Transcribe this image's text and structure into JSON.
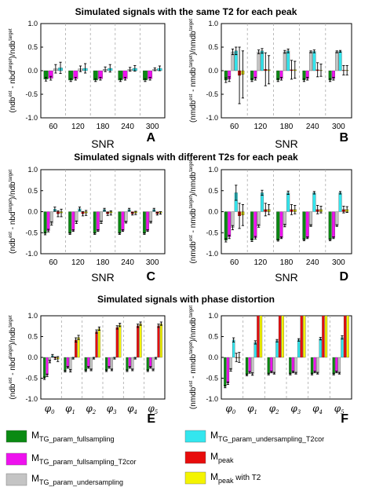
{
  "colors": {
    "fullsampling": "#0a8a12",
    "fullsampling_t2cor": "#ee11ee",
    "undersampling": "#c4c4c4",
    "undersampling_t2cor": "#33e6ee",
    "peak": "#e80c0c",
    "peak_t2": "#f4f400"
  },
  "row_titles": [
    "Simulated signals with the same T2 for each peak",
    "Simulated signals with different T2s for each peak",
    "Simulated signals with phase distortion"
  ],
  "legend": {
    "fullsampling": {
      "main": "M",
      "sub": "TG_param_fullsampling",
      "suffix": ""
    },
    "fullsampling_t2cor": {
      "main": "M",
      "sub": "TG_param_fullsampling_T2cor",
      "suffix": ""
    },
    "undersampling": {
      "main": "M",
      "sub": "TG_param_undersampling",
      "suffix": ""
    },
    "undersampling_t2cor": {
      "main": "M",
      "sub": "TG_param_undersampling_T2cor",
      "suffix": ""
    },
    "peak": {
      "main": "M",
      "sub": "peak",
      "suffix": ""
    },
    "peak_t2": {
      "main": "M",
      "sub": "peak",
      "suffix": " with T2"
    }
  },
  "chart_data": [
    {
      "panel": "A",
      "type": "bar",
      "xlabel": "SNR",
      "ylim": [
        -1.0,
        1.0
      ],
      "ylabel": {
        "base": "(ndb",
        "sup1": "est",
        "mid": " - nbd",
        "sup2": "target",
        "end": ")/ndb",
        "sup3": "target"
      },
      "categories": [
        "60",
        "120",
        "180",
        "240",
        "300"
      ],
      "series": [
        {
          "key": "fullsampling",
          "values": [
            -0.18,
            -0.2,
            -0.2,
            -0.2,
            -0.2
          ],
          "errors": [
            0.04,
            0.03,
            0.03,
            0.03,
            0.03
          ]
        },
        {
          "key": "fullsampling_t2cor",
          "values": [
            -0.16,
            -0.17,
            -0.17,
            -0.17,
            -0.17
          ],
          "errors": [
            0.04,
            0.03,
            0.03,
            0.03,
            0.03
          ]
        },
        {
          "key": "undersampling",
          "values": [
            0.04,
            0.04,
            0.03,
            0.03,
            0.03
          ],
          "errors": [
            0.09,
            0.06,
            0.05,
            0.04,
            0.03
          ]
        },
        {
          "key": "undersampling_t2cor",
          "values": [
            0.06,
            0.05,
            0.05,
            0.05,
            0.05
          ],
          "errors": [
            0.12,
            0.1,
            0.08,
            0.06,
            0.05
          ]
        }
      ]
    },
    {
      "panel": "B",
      "type": "bar",
      "xlabel": "SNR",
      "ylim": [
        -1.0,
        1.0
      ],
      "ylabel": {
        "base": "(nmdb",
        "sup1": "est",
        "mid": " - nmdb",
        "sup2": "target",
        "end": ")/nmdb",
        "sup3": "target"
      },
      "categories": [
        "60",
        "120",
        "180",
        "240",
        "300"
      ],
      "series": [
        {
          "key": "fullsampling",
          "values": [
            -0.2,
            -0.2,
            -0.2,
            -0.2,
            -0.2
          ],
          "errors": [
            0.05,
            0.03,
            0.03,
            0.03,
            0.03
          ]
        },
        {
          "key": "fullsampling_t2cor",
          "values": [
            -0.18,
            -0.17,
            -0.17,
            -0.17,
            -0.17
          ],
          "errors": [
            0.05,
            0.03,
            0.03,
            0.03,
            0.03
          ]
        },
        {
          "key": "undersampling",
          "values": [
            0.4,
            0.4,
            0.4,
            0.4,
            0.4
          ],
          "errors": [
            0.06,
            0.04,
            0.03,
            0.02,
            0.02
          ]
        },
        {
          "key": "undersampling_t2cor",
          "values": [
            0.42,
            0.42,
            0.42,
            0.41,
            0.41
          ],
          "errors": [
            0.08,
            0.05,
            0.04,
            0.03,
            0.02
          ]
        },
        {
          "key": "peak",
          "values": [
            -0.1,
            0.03,
            0.02,
            0.02,
            0.01
          ],
          "errors": [
            0.6,
            0.35,
            0.2,
            0.15,
            0.1
          ]
        },
        {
          "key": "peak_t2",
          "values": [
            -0.08,
            0.02,
            0.02,
            0.01,
            0.01
          ],
          "errors": [
            0.5,
            0.3,
            0.18,
            0.13,
            0.1
          ]
        }
      ]
    },
    {
      "panel": "C",
      "type": "bar",
      "xlabel": "SNR",
      "ylim": [
        -1.0,
        1.0
      ],
      "ylabel": {
        "base": "(ndb",
        "sup1": "est",
        "mid": " - nbd",
        "sup2": "target",
        "end": ")/ndb",
        "sup3": "target"
      },
      "categories": [
        "60",
        "120",
        "180",
        "240",
        "300"
      ],
      "series": [
        {
          "key": "fullsampling",
          "values": [
            -0.52,
            -0.52,
            -0.52,
            -0.52,
            -0.52
          ],
          "errors": [
            0.03,
            0.02,
            0.02,
            0.02,
            0.02
          ]
        },
        {
          "key": "fullsampling_t2cor",
          "values": [
            -0.45,
            -0.45,
            -0.45,
            -0.45,
            -0.45
          ],
          "errors": [
            0.03,
            0.02,
            0.02,
            0.02,
            0.02
          ]
        },
        {
          "key": "undersampling",
          "values": [
            -0.28,
            -0.25,
            -0.25,
            -0.25,
            -0.25
          ],
          "errors": [
            0.04,
            0.03,
            0.03,
            0.02,
            0.02
          ]
        },
        {
          "key": "undersampling_t2cor",
          "values": [
            0.06,
            0.07,
            0.05,
            0.05,
            0.05
          ],
          "errors": [
            0.05,
            0.04,
            0.03,
            0.03,
            0.03
          ]
        },
        {
          "key": "peak",
          "values": [
            -0.05,
            -0.05,
            -0.05,
            -0.05,
            -0.05
          ],
          "errors": [
            0.07,
            0.05,
            0.04,
            0.03,
            0.03
          ]
        },
        {
          "key": "peak_t2",
          "values": [
            -0.03,
            -0.03,
            -0.03,
            -0.03,
            -0.03
          ],
          "errors": [
            0.09,
            0.06,
            0.05,
            0.04,
            0.03
          ]
        }
      ]
    },
    {
      "panel": "D",
      "type": "bar",
      "xlabel": "SNR",
      "ylim": [
        -1.0,
        1.0
      ],
      "ylabel": {
        "base": "(nmdb",
        "sup1": "est",
        "mid": " - nmdb",
        "sup2": "target",
        "end": ")/nmdb",
        "sup3": "target"
      },
      "categories": [
        "60",
        "120",
        "180",
        "240",
        "300"
      ],
      "series": [
        {
          "key": "fullsampling",
          "values": [
            -0.68,
            -0.68,
            -0.68,
            -0.67,
            -0.67
          ],
          "errors": [
            0.04,
            0.03,
            0.02,
            0.02,
            0.02
          ]
        },
        {
          "key": "fullsampling_t2cor",
          "values": [
            -0.6,
            -0.62,
            -0.62,
            -0.62,
            -0.62
          ],
          "errors": [
            0.04,
            0.03,
            0.02,
            0.02,
            0.02
          ]
        },
        {
          "key": "undersampling",
          "values": [
            -0.38,
            -0.34,
            -0.33,
            -0.33,
            -0.33
          ],
          "errors": [
            0.05,
            0.03,
            0.03,
            0.02,
            0.02
          ]
        },
        {
          "key": "undersampling_t2cor",
          "values": [
            0.45,
            0.45,
            0.45,
            0.45,
            0.45
          ],
          "errors": [
            0.18,
            0.06,
            0.04,
            0.03,
            0.03
          ]
        },
        {
          "key": "peak",
          "values": [
            -0.1,
            0.05,
            0.05,
            0.05,
            0.05
          ],
          "errors": [
            0.3,
            0.15,
            0.12,
            0.1,
            0.08
          ]
        },
        {
          "key": "peak_t2",
          "values": [
            -0.08,
            0.05,
            0.05,
            0.05,
            0.05
          ],
          "errors": [
            0.25,
            0.12,
            0.1,
            0.08,
            0.07
          ]
        }
      ]
    },
    {
      "panel": "E",
      "type": "bar",
      "xlabel": "",
      "ylim": [
        -1.0,
        1.0
      ],
      "ylabel": {
        "base": "(ndb",
        "sup1": "est",
        "mid": " - nbd",
        "sup2": "target",
        "end": ")/ndb",
        "sup3": "target"
      },
      "categories": [
        "0",
        "1",
        "2",
        "3",
        "4",
        "5"
      ],
      "category_symbol": "φ",
      "series": [
        {
          "key": "fullsampling",
          "values": [
            -0.5,
            -0.33,
            -0.32,
            -0.32,
            -0.32,
            -0.32
          ],
          "errors": [
            0.03,
            0.02,
            0.02,
            0.02,
            0.02,
            0.02
          ]
        },
        {
          "key": "fullsampling_t2cor",
          "values": [
            -0.43,
            -0.24,
            -0.24,
            -0.24,
            -0.24,
            -0.24
          ],
          "errors": [
            0.03,
            0.02,
            0.02,
            0.02,
            0.02,
            0.02
          ]
        },
        {
          "key": "undersampling",
          "values": [
            -0.1,
            -0.32,
            -0.3,
            -0.3,
            -0.3,
            -0.3
          ],
          "errors": [
            0.03,
            0.03,
            0.02,
            0.02,
            0.02,
            0.02
          ]
        },
        {
          "key": "undersampling_t2cor",
          "values": [
            0.04,
            -0.02,
            -0.02,
            -0.02,
            -0.02,
            -0.02
          ],
          "errors": [
            0.03,
            0.02,
            0.02,
            0.02,
            0.02,
            0.02
          ]
        },
        {
          "key": "peak",
          "values": [
            -0.02,
            0.42,
            0.62,
            0.72,
            0.76,
            0.76
          ],
          "errors": [
            0.03,
            0.05,
            0.04,
            0.04,
            0.04,
            0.04
          ]
        },
        {
          "key": "peak_t2",
          "values": [
            -0.04,
            0.48,
            0.69,
            0.78,
            0.81,
            0.81
          ],
          "errors": [
            0.06,
            0.05,
            0.04,
            0.04,
            0.04,
            0.04
          ]
        }
      ]
    },
    {
      "panel": "F",
      "type": "bar",
      "xlabel": "",
      "ylim": [
        -1.0,
        1.0
      ],
      "ylabel": {
        "base": "(nmdb",
        "sup1": "est",
        "mid": " - nmdb",
        "sup2": "target",
        "end": ")/nmdb",
        "sup3": "target"
      },
      "categories": [
        "0",
        "1",
        "2",
        "3",
        "4",
        "5"
      ],
      "category_symbol": "φ",
      "series": [
        {
          "key": "fullsampling",
          "values": [
            -0.7,
            -0.42,
            -0.4,
            -0.4,
            -0.4,
            -0.4
          ],
          "errors": [
            0.03,
            0.02,
            0.02,
            0.02,
            0.02,
            0.02
          ]
        },
        {
          "key": "fullsampling_t2cor",
          "values": [
            -0.62,
            -0.36,
            -0.35,
            -0.35,
            -0.35,
            -0.35
          ],
          "errors": [
            0.03,
            0.02,
            0.02,
            0.02,
            0.02,
            0.02
          ]
        },
        {
          "key": "undersampling",
          "values": [
            -0.3,
            -0.4,
            -0.38,
            -0.38,
            -0.38,
            -0.38
          ],
          "errors": [
            0.03,
            0.03,
            0.02,
            0.02,
            0.02,
            0.02
          ]
        },
        {
          "key": "undersampling_t2cor",
          "values": [
            0.42,
            0.36,
            0.4,
            0.42,
            0.45,
            0.48
          ],
          "errors": [
            0.05,
            0.04,
            0.03,
            0.03,
            0.03,
            0.04
          ]
        },
        {
          "key": "peak",
          "values": [
            0.0,
            1.0,
            1.0,
            1.0,
            1.0,
            1.0
          ],
          "errors": [
            0.1,
            0.0,
            0.0,
            0.0,
            0.0,
            0.0
          ]
        },
        {
          "key": "peak_t2",
          "values": [
            0.0,
            1.0,
            1.0,
            1.0,
            1.0,
            1.0
          ],
          "errors": [
            0.12,
            0.0,
            0.0,
            0.0,
            0.0,
            0.0
          ]
        }
      ]
    }
  ],
  "yticks": [
    "-1.0",
    "-0.5",
    "0.0",
    "0.5",
    "1.0"
  ],
  "ytick_values": [
    -1.0,
    -0.5,
    0.0,
    0.5,
    1.0
  ]
}
